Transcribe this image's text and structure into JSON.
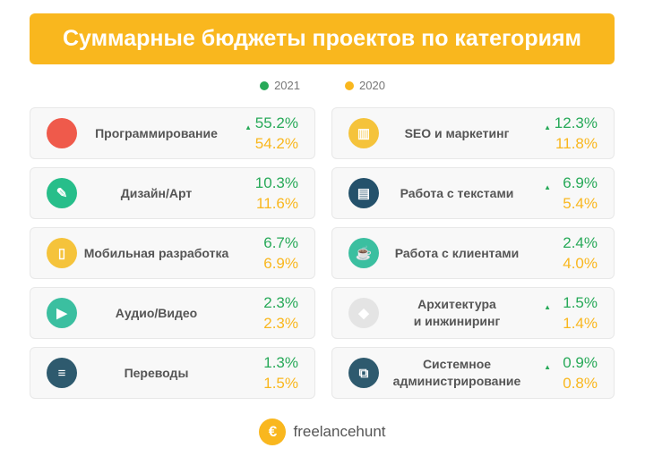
{
  "title": "Суммарные бюджеты проектов по категориям",
  "legend": {
    "y2021": "2021",
    "y2020": "2020"
  },
  "colors": {
    "accent": "#F9B71E",
    "up": "#27A958"
  },
  "chart_data": {
    "type": "table",
    "title": "Суммарные бюджеты проектов по категориям",
    "series": [
      {
        "name": "2021",
        "color": "#27A958"
      },
      {
        "name": "2020",
        "color": "#F9B71E"
      }
    ],
    "categories": [
      {
        "label": "Программирование",
        "v2021": "55.2%",
        "v2020": "54.2%",
        "up": true,
        "icon": "code-icon",
        "color": "#EF5A4B",
        "glyph": "</>"
      },
      {
        "label": "Дизайн/Арт",
        "v2021": "10.3%",
        "v2020": "11.6%",
        "up": false,
        "icon": "pencil-brush-icon",
        "color": "#27BE8A",
        "glyph": "✎"
      },
      {
        "label": "Мобильная разработка",
        "v2021": "6.7%",
        "v2020": "6.9%",
        "up": false,
        "icon": "mobile-icon",
        "color": "#F5C33B",
        "glyph": "▯"
      },
      {
        "label": "Аудио/Видео",
        "v2021": "2.3%",
        "v2020": "2.3%",
        "up": false,
        "icon": "clapperboard-icon",
        "color": "#3BBFA0",
        "glyph": "▶"
      },
      {
        "label": "Переводы",
        "v2021": "1.3%",
        "v2020": "1.5%",
        "up": false,
        "icon": "books-icon",
        "color": "#2E5A6E",
        "glyph": "≡"
      },
      {
        "label": "SEO и маркетинг",
        "v2021": "12.3%",
        "v2020": "11.8%",
        "up": true,
        "icon": "presentation-chart-icon",
        "color": "#F5C33B",
        "glyph": "▥"
      },
      {
        "label": "Работа с текстами",
        "v2021": "6.9%",
        "v2020": "5.4%",
        "up": true,
        "icon": "document-icon",
        "color": "#24516B",
        "glyph": "▤"
      },
      {
        "label": "Работа с клиентами",
        "v2021": "2.4%",
        "v2020": "4.0%",
        "up": false,
        "icon": "cup-icon",
        "color": "#3BBFA0",
        "glyph": "☕"
      },
      {
        "label": "Архитектура\nи инжиниринг",
        "v2021": "1.5%",
        "v2020": "1.4%",
        "up": true,
        "icon": "box-icon",
        "color": "#E4E4E4",
        "glyph": "◆"
      },
      {
        "label": "Системное\nадминистрирование",
        "v2021": "0.9%",
        "v2020": "0.8%",
        "up": true,
        "icon": "network-icon",
        "color": "#2E5A6E",
        "glyph": "⧉"
      }
    ]
  },
  "footer": {
    "brand": "freelancehunt"
  }
}
